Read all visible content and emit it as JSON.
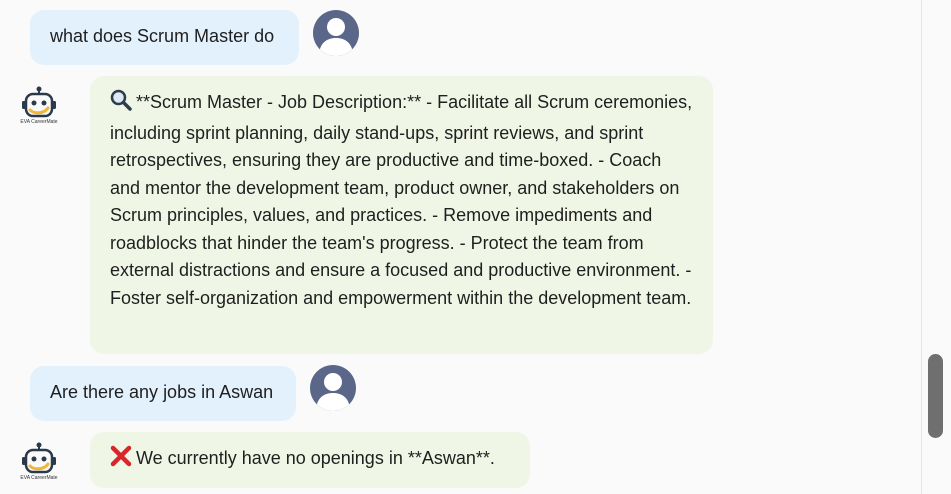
{
  "messages": [
    {
      "role": "user",
      "text": "what does Scrum Master do"
    },
    {
      "role": "bot",
      "icon": "magnifier-icon",
      "text": "**Scrum Master - Job Description:** - Facilitate all Scrum ceremonies, including sprint planning, daily stand-ups, sprint reviews, and sprint retrospectives, ensuring they are productive and time-boxed. - Coach and mentor the development team, product owner, and stakeholders on Scrum principles, values, and practices. - Remove impediments and roadblocks that hinder the team's progress. - Protect the team from external distractions and ensure a focused and productive environment. - Foster self-organization and empowerment within the development team."
    },
    {
      "role": "user",
      "text": "Are there any jobs in Aswan"
    },
    {
      "role": "bot",
      "icon": "cross-mark-icon",
      "text": "We currently have no openings in **Aswan**."
    }
  ],
  "bot": {
    "logo_text": "EVA CareerMate"
  },
  "colors": {
    "user_bubble": "#e3f1fd",
    "bot_bubble": "#f0f6e6",
    "avatar": "#5a6788",
    "background": "#fafafa"
  }
}
